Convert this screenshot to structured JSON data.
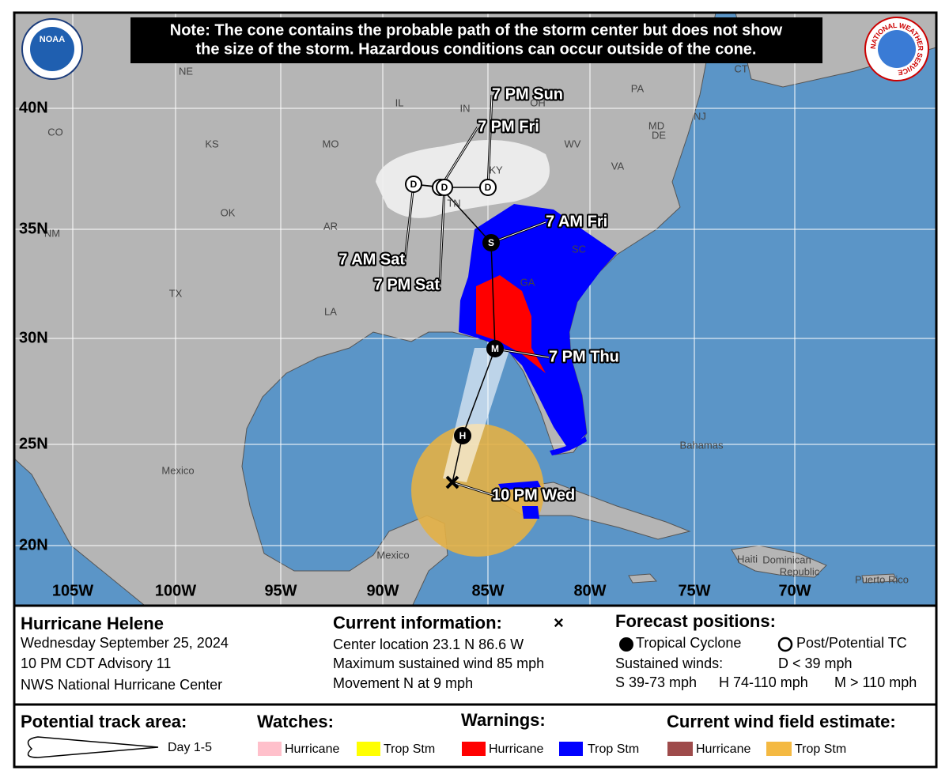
{
  "logos": {
    "noaa": "NOAA",
    "nws": "NATIONAL WEATHER SERVICE"
  },
  "note_lines": [
    "Note: The cone contains the probable path of the storm center but does not show",
    "the size of the storm. Hazardous conditions can occur outside of the cone."
  ],
  "map": {
    "lat_labels": [
      "40N",
      "35N",
      "30N",
      "25N",
      "20N"
    ],
    "lon_labels": [
      "105W",
      "100W",
      "95W",
      "90W",
      "85W",
      "80W",
      "75W",
      "70W"
    ],
    "place_labels": [
      "NE",
      "IL",
      "IN",
      "OH",
      "PA",
      "CT",
      "NJ",
      "CO",
      "KS",
      "MO",
      "WV",
      "MD",
      "DE",
      "VA",
      "KY",
      "TN",
      "OK",
      "AR",
      "NM",
      "SC",
      "GA",
      "TX",
      "LA",
      "Bahamas",
      "Mexico",
      "Mexico",
      "Haiti",
      "Dominican",
      "Republic",
      "Puerto Rico"
    ]
  },
  "current_time": "10 PM Wed",
  "track": [
    {
      "marker": "H"
    },
    {
      "marker": "M",
      "time": "7 PM Thu"
    },
    {
      "marker": "S",
      "time": "7 AM Fri"
    },
    {
      "marker": "D",
      "time": "7 PM Fri"
    },
    {
      "marker": "D",
      "time": "7 AM Sat"
    },
    {
      "marker": "D",
      "time": "7 PM Sat"
    },
    {
      "marker": "D",
      "time": "7 PM Sun"
    }
  ],
  "info": {
    "storm": {
      "title": "Hurricane Helene",
      "lines": [
        "Wednesday September 25, 2024",
        "10 PM CDT Advisory 11",
        "NWS National Hurricane Center"
      ]
    },
    "current": {
      "heading": "Current information:",
      "symbol": "×",
      "lines": [
        "Center location 23.1 N 86.6 W",
        "Maximum sustained wind 85 mph",
        "Movement N at 9 mph"
      ]
    },
    "forecast": {
      "heading": "Forecast positions:",
      "tropical": "Tropical Cyclone",
      "post": "Post/Potential TC",
      "winds": "Sustained winds:",
      "d": "D < 39 mph",
      "s": "S 39-73 mph",
      "h": "H 74-110 mph",
      "m": "M > 110 mph"
    }
  },
  "legend": {
    "track_area": "Potential track area:",
    "day": "Day 1-5",
    "watches": "Watches:",
    "watch_hurricane": "Hurricane",
    "watch_ts": "Trop Stm",
    "warnings": "Warnings:",
    "warn_hurricane": "Hurricane",
    "warn_ts": "Trop Stm",
    "wind_field": "Current wind field estimate:",
    "wind_hurricane": "Hurricane",
    "wind_ts": "Trop Stm"
  }
}
